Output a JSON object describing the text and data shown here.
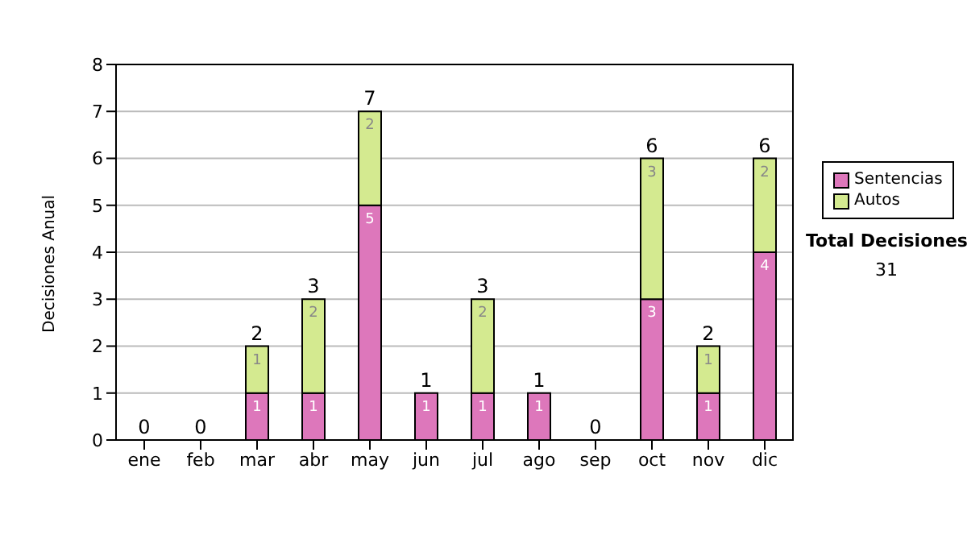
{
  "chart_data": {
    "type": "bar",
    "stacked": true,
    "ylabel": "Decisiones Anual",
    "categories": [
      "ene",
      "feb",
      "mar",
      "abr",
      "may",
      "jun",
      "jul",
      "ago",
      "sep",
      "oct",
      "nov",
      "dic"
    ],
    "series": [
      {
        "name": "Sentencias",
        "color": "#dd77bb",
        "values": [
          0,
          0,
          1,
          1,
          5,
          1,
          1,
          1,
          0,
          3,
          1,
          4
        ],
        "value_labels": [
          null,
          null,
          "1",
          "1",
          "5",
          "1",
          "1",
          "1",
          null,
          "3",
          "1",
          "4"
        ]
      },
      {
        "name": "Autos",
        "color": "#d4ea90",
        "values": [
          0,
          0,
          1,
          2,
          2,
          0,
          2,
          0,
          0,
          3,
          1,
          2
        ],
        "value_labels": [
          null,
          null,
          "1",
          "2",
          "2",
          null,
          "2",
          null,
          null,
          "3",
          "1",
          "2"
        ]
      }
    ],
    "totals": [
      "0",
      "0",
      "2",
      "3",
      "7",
      "1",
      "3",
      "1",
      "0",
      "6",
      "2",
      "6"
    ],
    "ylim": [
      0,
      8
    ],
    "yticks": [
      0,
      1,
      2,
      3,
      4,
      5,
      6,
      7,
      8
    ],
    "grid": "y",
    "legend": "right",
    "annotations": [
      "Total Decisiones",
      "31"
    ]
  }
}
